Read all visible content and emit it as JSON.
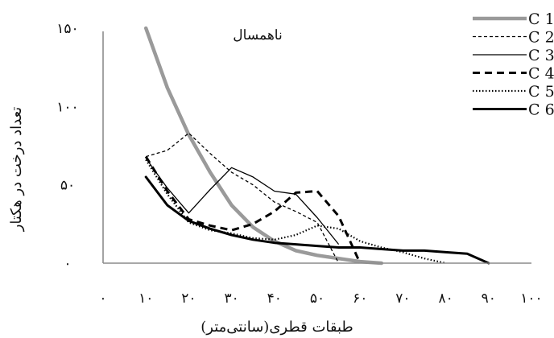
{
  "chart_data": {
    "type": "line",
    "title": "ناهمسال",
    "xlabel": "طبقات قطری(سانتی‌متر)",
    "ylabel": "تعداد درخت در هکتار",
    "xlim": [
      0,
      100
    ],
    "ylim": [
      0,
      150
    ],
    "x_ticks": [
      0,
      10,
      20,
      30,
      40,
      50,
      60,
      70,
      80,
      90,
      100
    ],
    "x_tick_labels": [
      "۰",
      "۱۰",
      "۲۰",
      "۳۰",
      "۴۰",
      "۵۰",
      "۶۰",
      "۷۰",
      "۸۰",
      "۹۰",
      "۱۰۰"
    ],
    "y_ticks": [
      0,
      50,
      100,
      150
    ],
    "y_tick_labels": [
      "۰",
      "۵۰",
      "۱۰۰",
      "۱۵۰"
    ],
    "grid": false,
    "legend_position": "top-right",
    "series": [
      {
        "name": "C 1",
        "color": "#9a9a9a",
        "style": "solid-thick",
        "x": [
          10,
          15,
          20,
          25,
          30,
          35,
          40,
          45,
          50,
          55,
          60,
          65
        ],
        "y": [
          150,
          112,
          82,
          58,
          37,
          23,
          14,
          8,
          5,
          3,
          1,
          0
        ]
      },
      {
        "name": "C 2",
        "color": "#000000",
        "style": "dashed-thin",
        "x": [
          10,
          15,
          20,
          25,
          30,
          35,
          40,
          45,
          50,
          55
        ],
        "y": [
          68,
          72,
          83,
          70,
          58,
          50,
          39,
          33,
          26,
          0
        ]
      },
      {
        "name": "C 3",
        "color": "#000000",
        "style": "solid-thin",
        "x": [
          10,
          15,
          20,
          25,
          30,
          35,
          40,
          45,
          50,
          55
        ],
        "y": [
          67,
          48,
          32,
          47,
          61,
          55,
          46,
          44,
          29,
          12
        ]
      },
      {
        "name": "C 4",
        "color": "#000000",
        "style": "dashed-thick",
        "x": [
          10,
          15,
          20,
          25,
          30,
          35,
          40,
          45,
          50,
          55,
          60
        ],
        "y": [
          68,
          46,
          28,
          24,
          21,
          25,
          33,
          45,
          46,
          30,
          0
        ]
      },
      {
        "name": "C 5",
        "color": "#000000",
        "style": "dotted",
        "x": [
          10,
          15,
          20,
          25,
          30,
          35,
          40,
          45,
          50,
          55,
          60,
          65,
          70,
          75,
          80
        ],
        "y": [
          66,
          44,
          26,
          21,
          19,
          16,
          15,
          18,
          24,
          22,
          14,
          10,
          7,
          3,
          0
        ]
      },
      {
        "name": "C 6",
        "color": "#000000",
        "style": "solid-thick-black",
        "x": [
          10,
          15,
          20,
          25,
          30,
          35,
          40,
          45,
          50,
          55,
          60,
          65,
          70,
          75,
          80,
          85,
          90
        ],
        "y": [
          55,
          37,
          27,
          22,
          18,
          15,
          13,
          12,
          11,
          10,
          10,
          9,
          8,
          8,
          7,
          6,
          0
        ]
      }
    ]
  }
}
